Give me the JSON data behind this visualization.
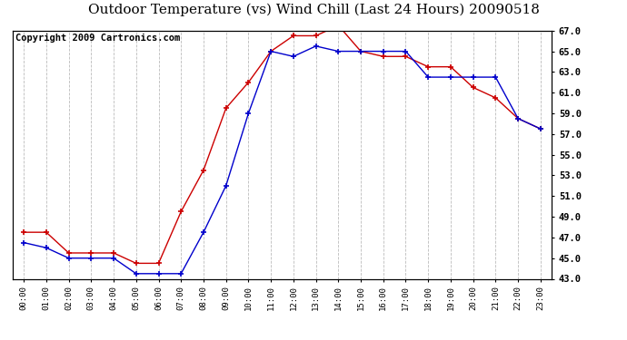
{
  "title": "Outdoor Temperature (vs) Wind Chill (Last 24 Hours) 20090518",
  "copyright": "Copyright 2009 Cartronics.com",
  "x_labels": [
    "00:00",
    "01:00",
    "02:00",
    "03:00",
    "04:00",
    "05:00",
    "06:00",
    "07:00",
    "08:00",
    "09:00",
    "10:00",
    "11:00",
    "12:00",
    "13:00",
    "14:00",
    "15:00",
    "16:00",
    "17:00",
    "18:00",
    "19:00",
    "20:00",
    "21:00",
    "22:00",
    "23:00"
  ],
  "temp_red": [
    47.5,
    47.5,
    45.5,
    45.5,
    45.5,
    44.5,
    44.5,
    49.5,
    53.5,
    59.5,
    62.0,
    65.0,
    66.5,
    66.5,
    67.5,
    65.0,
    64.5,
    64.5,
    63.5,
    63.5,
    61.5,
    60.5,
    58.5,
    57.5
  ],
  "temp_blue": [
    46.5,
    46.0,
    45.0,
    45.0,
    45.0,
    43.5,
    43.5,
    43.5,
    47.5,
    52.0,
    59.0,
    65.0,
    64.5,
    65.5,
    65.0,
    65.0,
    65.0,
    65.0,
    62.5,
    62.5,
    62.5,
    62.5,
    58.5,
    57.5
  ],
  "red_color": "#cc0000",
  "blue_color": "#0000cc",
  "background_color": "#ffffff",
  "plot_bg_color": "#ffffff",
  "grid_color": "#bbbbbb",
  "ylim_min": 43.0,
  "ylim_max": 67.0,
  "ytick_step": 2.0,
  "title_fontsize": 11,
  "copyright_fontsize": 7.5
}
